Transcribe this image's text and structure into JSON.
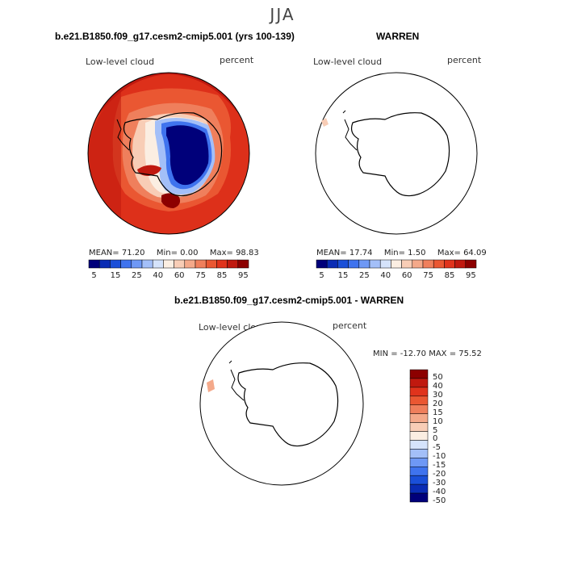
{
  "season": "JJA",
  "panel1": {
    "title": "b.e21.B1850.f09_g17.cesm2-cmip5.001 (yrs 100-139)",
    "variable": "Low-level cloud",
    "units": "percent",
    "mean_label": "MEAN=",
    "mean": "71.20",
    "min_label": "Min=",
    "min": "0.00",
    "max_label": "Max=",
    "max": "98.83"
  },
  "panel2": {
    "title": "WARREN",
    "variable": "Low-level cloud",
    "units": "percent",
    "mean_label": "MEAN=",
    "mean": "17.74",
    "min_label": "Min=",
    "min": "1.50",
    "max_label": "Max=",
    "max": "64.09"
  },
  "panel3": {
    "title": "b.e21.B1850.f09_g17.cesm2-cmip5.001 - WARREN",
    "variable": "Low-level cloud",
    "units": "percent",
    "minmax": "MIN = -12.70  MAX =  75.52"
  },
  "colorbar_abs": {
    "colors": [
      "#00007a",
      "#0a2cb4",
      "#1a4fd8",
      "#3f73ee",
      "#6e98f5",
      "#a3bff8",
      "#d5e3fb",
      "#fbeee2",
      "#f8cdb6",
      "#f4a98a",
      "#ef7f5c",
      "#ea5732",
      "#e0331c",
      "#c0190f",
      "#8c0000"
    ],
    "tick_labels": [
      "5",
      "15",
      "25",
      "40",
      "60",
      "75",
      "85",
      "95"
    ]
  },
  "colorbar_diff": {
    "colors": [
      "#8c0000",
      "#c0190f",
      "#e0331c",
      "#ea5732",
      "#ef7f5c",
      "#f4a98a",
      "#f8cdb6",
      "#fbeee2",
      "#d5e3fb",
      "#a3bff8",
      "#6e98f5",
      "#3f73ee",
      "#1a4fd8",
      "#0a2cb4",
      "#00007a"
    ],
    "tick_labels": [
      "50",
      "40",
      "30",
      "20",
      "15",
      "10",
      "5",
      "0",
      "-5",
      "-10",
      "-15",
      "-20",
      "-30",
      "-40",
      "-50"
    ]
  }
}
